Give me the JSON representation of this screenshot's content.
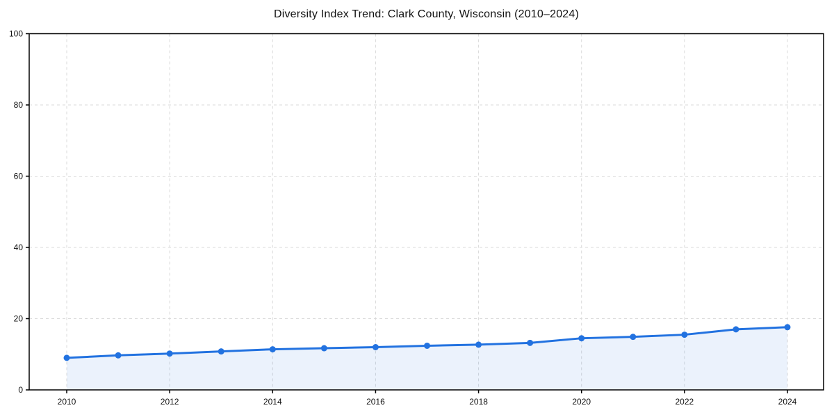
{
  "chart_data": {
    "type": "line",
    "title": "Diversity Index Trend: Clark County, Wisconsin (2010–2024)",
    "x": [
      2010,
      2011,
      2012,
      2013,
      2014,
      2015,
      2016,
      2017,
      2018,
      2019,
      2020,
      2021,
      2022,
      2023,
      2024
    ],
    "values": [
      9.0,
      9.7,
      10.2,
      10.8,
      11.4,
      11.7,
      12.0,
      12.4,
      12.7,
      13.2,
      14.5,
      14.9,
      15.5,
      17.0,
      17.6
    ],
    "xticks": [
      2010,
      2012,
      2014,
      2016,
      2018,
      2020,
      2022,
      2024
    ],
    "yticks": [
      0,
      20,
      40,
      60,
      80,
      100
    ],
    "ylim": [
      0,
      100
    ],
    "xlabel": "",
    "ylabel": "",
    "legend": "none",
    "grid": "dashed-both-axes",
    "area_fill": true,
    "marker": "circle",
    "colors": {
      "line": "#2272e0",
      "marker": "#2272e0",
      "area": "rgba(34,114,224,0.09)",
      "grid": "#d9d9d9",
      "spine": "#000000",
      "tick_label": "#111111",
      "title": "#111111",
      "background": "#ffffff"
    }
  }
}
